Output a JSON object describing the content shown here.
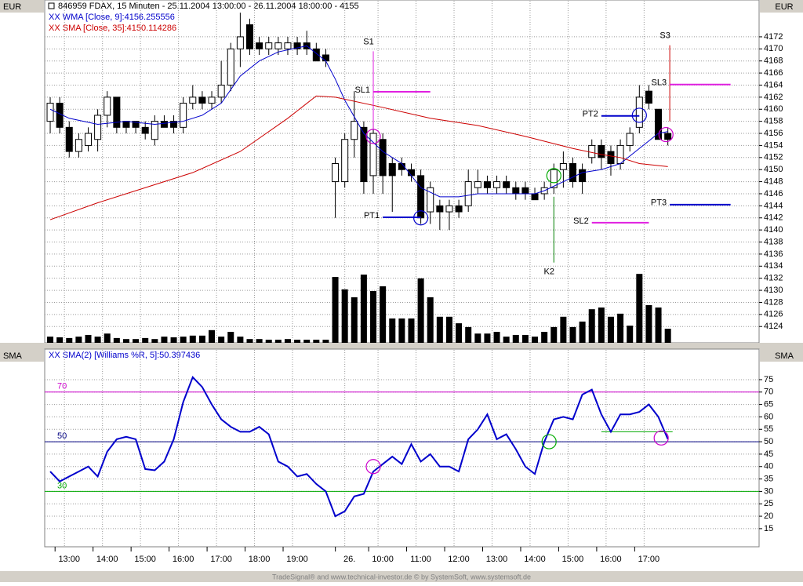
{
  "header": {
    "unit_main": "EUR",
    "unit_lower": "SMA",
    "footer": "TradeSignal® and www.technical-investor.de © by SystemSoft, www.systemsoft.de"
  },
  "chart_data": [
    {
      "type": "candlestick",
      "title": "846959  FDAX, 15 Minuten - 25.11.2004 13:00:00 - 26.11.2004 18:00:00 - 4155",
      "x": [
        0,
        1,
        2,
        3,
        4,
        5,
        6,
        7,
        8,
        9,
        10,
        11,
        12,
        13,
        14,
        15,
        16,
        17,
        18,
        19,
        20,
        21,
        22,
        23,
        24,
        25,
        26,
        27,
        28,
        29,
        30,
        31,
        32,
        33,
        34,
        35,
        36,
        37,
        38,
        39,
        40,
        41,
        42,
        43,
        44,
        45,
        46,
        47,
        48,
        49,
        50,
        51,
        52,
        53,
        54,
        55,
        56,
        57,
        58,
        59,
        60,
        61,
        62,
        63,
        64,
        65
      ],
      "open": [
        4158,
        4161,
        4157,
        4153,
        4154,
        4155,
        4159,
        4162,
        4158,
        4158,
        4157,
        4155,
        4158,
        4158,
        4157,
        4161,
        4162,
        4161,
        4162,
        4164,
        4170,
        4174,
        4171,
        4170,
        4170,
        4170,
        4171,
        4171,
        4170,
        4169,
        4148,
        4148,
        4155,
        4157,
        4149,
        4155,
        4151,
        4151,
        4150,
        4149,
        4143,
        4144,
        4143,
        4144,
        4144,
        4147,
        4148,
        4147,
        4148,
        4147,
        4147,
        4146,
        4146,
        4147,
        4150,
        4151,
        4150,
        4152,
        4154,
        4153,
        4151,
        4154,
        4157,
        4163,
        4160,
        4156
      ],
      "high": [
        4162,
        4162,
        4158,
        4156,
        4157,
        4160,
        4163,
        4162,
        4158,
        4158,
        4158,
        4159,
        4159,
        4159,
        4162,
        4164,
        4163,
        4163,
        4168,
        4171,
        4176,
        4175,
        4172,
        4172,
        4172,
        4172,
        4172,
        4173,
        4171,
        4170,
        4152,
        4156,
        4163,
        4158,
        4158,
        4156,
        4152,
        4152,
        4151,
        4150,
        4148,
        4145,
        4145,
        4145,
        4150,
        4150,
        4149,
        4149,
        4149,
        4148,
        4148,
        4147,
        4148,
        4151,
        4153,
        4152,
        4151,
        4155,
        4155,
        4154,
        4155,
        4157,
        4164,
        4164,
        4160,
        4157
      ],
      "low": [
        4156,
        4156,
        4152,
        4152,
        4153,
        4153,
        4157,
        4156,
        4156,
        4156,
        4155,
        4154,
        4157,
        4156,
        4156,
        4160,
        4160,
        4160,
        4161,
        4163,
        4167,
        4169,
        4169,
        4169,
        4169,
        4169,
        4169,
        4169,
        4168,
        4167,
        4142,
        4147,
        4152,
        4146,
        4146,
        4146,
        4143,
        4149,
        4148,
        4141,
        4141,
        4140,
        4140,
        4142,
        4143,
        4146,
        4146,
        4146,
        4146,
        4145,
        4145,
        4145,
        4145,
        4146,
        4147,
        4147,
        4146,
        4151,
        4150,
        4149,
        4150,
        4153,
        4156,
        4160,
        4155,
        4154
      ],
      "close": [
        4161,
        4157,
        4153,
        4155,
        4156,
        4159,
        4162,
        4157,
        4157,
        4157,
        4156,
        4158,
        4157,
        4157,
        4161,
        4162,
        4161,
        4162,
        4164,
        4170,
        4172,
        4170,
        4170,
        4171,
        4171,
        4171,
        4170,
        4170,
        4168,
        4168,
        4151,
        4155,
        4158,
        4148,
        4156,
        4149,
        4149,
        4150,
        4149,
        4142,
        4147,
        4143,
        4144,
        4143,
        4148,
        4148,
        4147,
        4148,
        4147,
        4146,
        4146,
        4145,
        4147,
        4150,
        4151,
        4148,
        4148,
        4154,
        4152,
        4151,
        4154,
        4156,
        4162,
        4161,
        4155,
        4155
      ],
      "up_color": "#ffffff",
      "down_color": "#000000",
      "volume": [
        1.8,
        1.6,
        1.4,
        1.8,
        2.3,
        1.8,
        2.7,
        1.4,
        1.1,
        1.1,
        1.4,
        1.1,
        1.8,
        1.6,
        1.8,
        2.1,
        2.1,
        3.7,
        1.8,
        3.2,
        1.8,
        1.1,
        1.1,
        0.9,
        0.9,
        1.1,
        0.9,
        0.9,
        0.9,
        0.9,
        19.2,
        15.6,
        13.3,
        19.9,
        15.1,
        16.5,
        7.1,
        7.1,
        7.1,
        18.8,
        13.3,
        7.6,
        7.6,
        5.7,
        4.6,
        2.7,
        2.7,
        3.2,
        1.8,
        2.3,
        2.3,
        1.8,
        3.2,
        4.6,
        7.6,
        4.6,
        6.2,
        9.8,
        10.3,
        7.6,
        8.5,
        5.0,
        20.1,
        11.0,
        10.3,
        4.1
      ],
      "vlim": [
        0,
        100
      ],
      "volume_color": "#000000",
      "series": [
        {
          "name": "XX WMA [Close, 9]:4156.255556",
          "color": "#0000cc",
          "x": [
            0,
            2,
            5,
            8,
            11,
            14,
            16,
            18,
            20,
            22,
            24,
            27,
            29,
            30,
            31,
            33,
            35,
            37,
            39,
            41,
            43,
            45,
            48,
            51,
            52,
            54,
            56,
            58,
            60,
            62,
            64,
            65
          ],
          "values": [
            4160,
            4158.5,
            4157.5,
            4158,
            4157.5,
            4158,
            4159,
            4161,
            4165.5,
            4168,
            4169.5,
            4170.5,
            4168,
            4165,
            4161.5,
            4156,
            4153,
            4151,
            4147,
            4145.5,
            4145.5,
            4146,
            4146,
            4146,
            4146.5,
            4148,
            4149.5,
            4150,
            4151,
            4153.5,
            4156,
            4156.3
          ]
        },
        {
          "name": "XX SMA [Close, 35]:4150.114286",
          "color": "#cc0000",
          "x": [
            0,
            5,
            10,
            15,
            20,
            25,
            28,
            30,
            35,
            40,
            45,
            50,
            55,
            58,
            60,
            62,
            65
          ],
          "values": [
            4141.7,
            4144.5,
            4147,
            4149.5,
            4153,
            4158.5,
            4162.2,
            4162,
            4160.3,
            4158.5,
            4157.3,
            4155.5,
            4153.5,
            4152.5,
            4152,
            4151,
            4150.5
          ]
        }
      ],
      "annotations": [
        {
          "label": "S1",
          "x": 34,
          "y": [
            4169.6,
            4156.6
          ],
          "color": "#e020e0"
        },
        {
          "label": "SL1",
          "x": [
            34,
            40
          ],
          "y": 4162.9,
          "color": "#e020e0"
        },
        {
          "label": "PT1",
          "x": [
            35,
            39
          ],
          "y": 4142.1,
          "color": "#0000cc"
        },
        {
          "label": "K2",
          "x": 53,
          "y": [
            4134.6,
            4145.5
          ],
          "color": "#008000"
        },
        {
          "label": "PT2",
          "x": [
            58,
            62
          ],
          "y": 4158.9,
          "color": "#0000cc"
        },
        {
          "label": "SL2",
          "x": [
            57,
            63
          ],
          "y": 4141.2,
          "color": "#e020e0"
        },
        {
          "label": "S3",
          "x": 65.2,
          "y": [
            4170.6,
            4158
          ],
          "color": "#cc0000"
        },
        {
          "label": "SL3",
          "x": [
            65.2,
            71.6
          ],
          "y": 4164.1,
          "color": "#e020e0"
        },
        {
          "label": "PT3",
          "x": [
            65.2,
            71.6
          ],
          "y": 4144.2,
          "color": "#0000cc"
        }
      ],
      "circles": [
        {
          "x": 39,
          "y": 4142,
          "color": "#0000cc"
        },
        {
          "x": 62,
          "y": 4159,
          "color": "#0000cc"
        },
        {
          "x": 53,
          "y": 4149,
          "color": "#00aa00"
        },
        {
          "x": 34,
          "y": 4155.5,
          "color": "#cc00cc"
        },
        {
          "x": 64.8,
          "y": 4155.8,
          "color": "#cc00cc"
        }
      ],
      "xlim": [
        -0.58,
        74.6
      ],
      "ylim": [
        4121.3,
        4178.1
      ],
      "yticks": [
        4124,
        4126,
        4128,
        4130,
        4132,
        4134,
        4136,
        4138,
        4140,
        4142,
        4144,
        4146,
        4148,
        4150,
        4152,
        4154,
        4156,
        4158,
        4160,
        4162,
        4164,
        4166,
        4168,
        4170,
        4172
      ],
      "grid": true
    },
    {
      "type": "line",
      "series": [
        {
          "name": "XX SMA(2) [Williams %R, 5]:50.397436",
          "color": "#0000cc",
          "x": [
            0,
            1,
            2,
            3,
            4,
            5,
            6,
            7,
            8,
            9,
            10,
            11,
            12,
            13,
            14,
            15,
            16,
            17,
            18,
            19,
            20,
            21,
            22,
            23,
            24,
            25,
            26,
            27,
            28,
            29,
            30,
            31,
            32,
            33,
            34,
            35,
            36,
            37,
            38,
            39,
            40,
            41,
            42,
            43,
            44,
            45,
            46,
            47,
            48,
            49,
            50,
            51,
            52,
            53,
            54,
            55,
            56,
            57,
            58,
            59,
            60,
            61,
            62,
            63,
            64,
            65
          ],
          "values": [
            38,
            34,
            36,
            38,
            40,
            36,
            46,
            51,
            52,
            51,
            39,
            38.5,
            42,
            51,
            66,
            76,
            72,
            65,
            59,
            56,
            54,
            54,
            56,
            53,
            42,
            40,
            36,
            37,
            33,
            30,
            20,
            22,
            28,
            29,
            38,
            41,
            44,
            41,
            49,
            42,
            45,
            40,
            40,
            38,
            51,
            55,
            61,
            51,
            53,
            47,
            40,
            37,
            50,
            59,
            60,
            59,
            69,
            71,
            61,
            54,
            61,
            61,
            62,
            65,
            60,
            51
          ]
        }
      ],
      "levels": [
        {
          "value": 70,
          "color": "#cc00cc"
        },
        {
          "value": 50,
          "color": "#000080"
        },
        {
          "value": 30,
          "color": "#00aa00"
        }
      ],
      "segments": [
        {
          "value": 54,
          "x": [
            58,
            65.5
          ],
          "color": "#00aa00"
        }
      ],
      "circles": [
        {
          "x": 34,
          "y": 40,
          "color": "#cc00cc"
        },
        {
          "x": 52.5,
          "y": 50,
          "color": "#00aa00"
        },
        {
          "x": 64.3,
          "y": 51.5,
          "color": "#cc00cc"
        }
      ],
      "xlim": [
        -0.58,
        74.6
      ],
      "ylim": [
        7.7,
        87.3
      ],
      "yticks": [
        15,
        20,
        25,
        30,
        35,
        40,
        45,
        50,
        55,
        60,
        65,
        70,
        75
      ],
      "xticks": [
        {
          "value": 1.5,
          "label": "13:00"
        },
        {
          "value": 5.5,
          "label": "14:00"
        },
        {
          "value": 9.5,
          "label": "15:00"
        },
        {
          "value": 13.5,
          "label": "16:00"
        },
        {
          "value": 17.5,
          "label": "17:00"
        },
        {
          "value": 21.5,
          "label": "18:00"
        },
        {
          "value": 25.5,
          "label": "19:00"
        },
        {
          "value": 31,
          "label": "26."
        },
        {
          "value": 34.5,
          "label": "10:00"
        },
        {
          "value": 38.5,
          "label": "11:00"
        },
        {
          "value": 42.5,
          "label": "12:00"
        },
        {
          "value": 46.5,
          "label": "13:00"
        },
        {
          "value": 50.5,
          "label": "14:00"
        },
        {
          "value": 54.5,
          "label": "15:00"
        },
        {
          "value": 58.5,
          "label": "16:00"
        },
        {
          "value": 62.5,
          "label": "17:00"
        }
      ],
      "grid": true
    }
  ]
}
